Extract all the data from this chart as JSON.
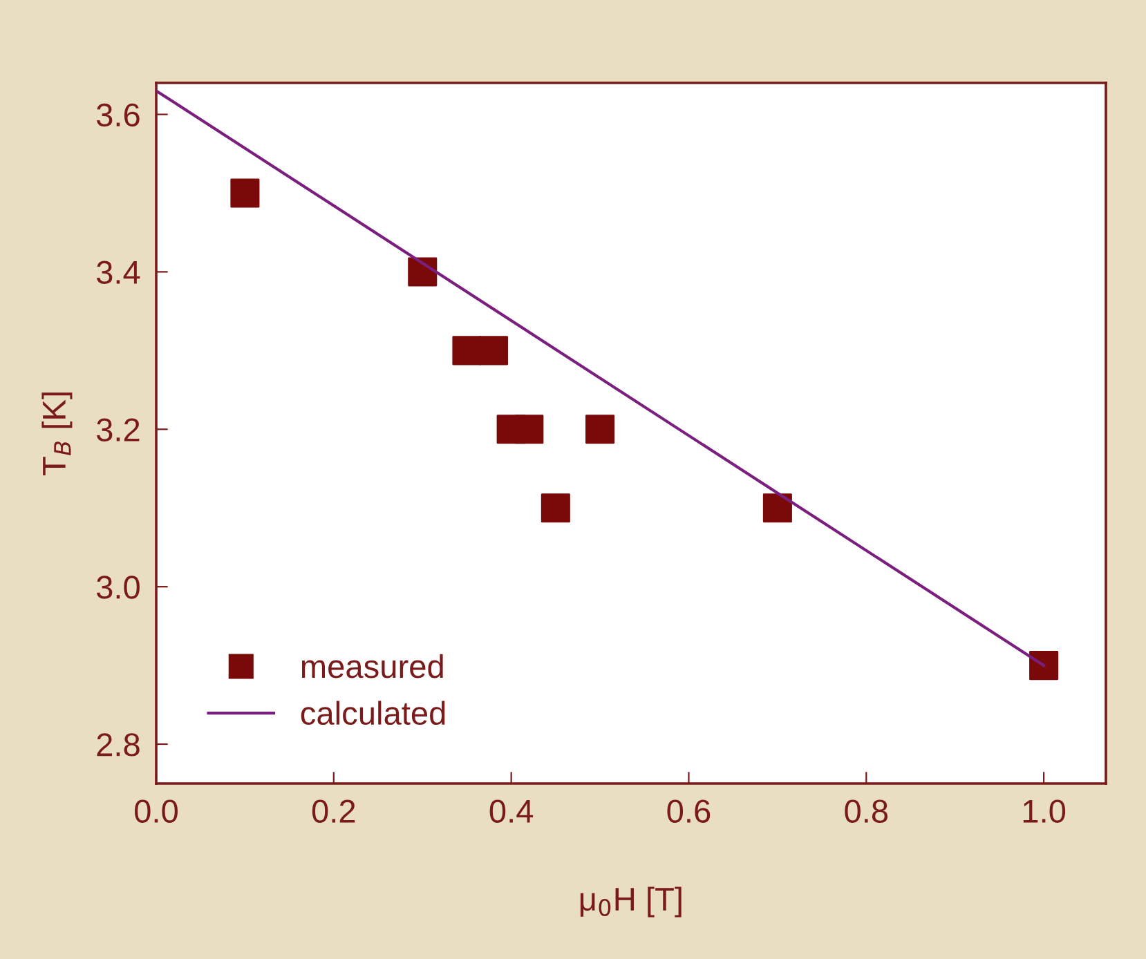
{
  "chart_data": {
    "type": "scatter",
    "xlabel": "μ$_{0}$H [T]",
    "ylabel": "T$_{B}$ [K]",
    "series": [
      {
        "name": "measured",
        "color": "#7a0a0a",
        "marker": "square",
        "x": [
          0.1,
          0.3,
          0.35,
          0.38,
          0.4,
          0.42,
          0.45,
          0.5,
          0.7,
          1.0
        ],
        "values": [
          3.5,
          3.4,
          3.3,
          3.3,
          3.2,
          3.2,
          3.1,
          3.2,
          3.1,
          2.9
        ]
      },
      {
        "name": "calculated",
        "type": "line",
        "color": "#7b1f7e",
        "line_style": "solid",
        "x": [
          0.0,
          1.0
        ],
        "values": [
          3.63,
          2.9
        ]
      }
    ],
    "xlim": [
      0.0,
      1.07
    ],
    "ylim": [
      2.75,
      3.64
    ],
    "xticks": [
      {
        "value": 0.0,
        "label": "0.0"
      },
      0.2,
      0.4,
      0.6,
      0.8,
      {
        "value": 1.0,
        "label": "1.0"
      }
    ],
    "yticks": [
      2.8,
      {
        "value": 3.0,
        "label": "3.0"
      },
      3.2,
      3.4,
      3.6
    ],
    "grid": false,
    "legend": "bottom left"
  }
}
